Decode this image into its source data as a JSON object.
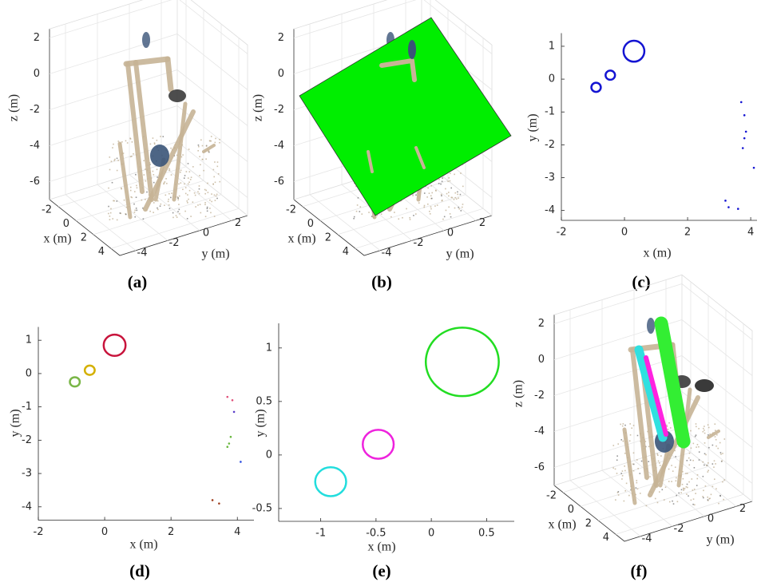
{
  "chart_data": [
    {
      "type": "scatter3d",
      "label": "(a)",
      "xlabel": "x (m)",
      "ylabel": "y (m)",
      "zlabel": "z (m)",
      "xlim": [
        -3,
        5
      ],
      "ylim": [
        -5,
        3
      ],
      "zlim": [
        -7,
        2.5
      ],
      "xticks": [
        -2,
        0,
        2,
        4
      ],
      "yticks": [
        -4,
        -2,
        0,
        2
      ],
      "zticks": [
        2,
        0,
        -2,
        -4,
        -6
      ],
      "grid": true
    },
    {
      "type": "scatter3d",
      "label": "(b)",
      "xlabel": "x (m)",
      "ylabel": "y (m)",
      "zlabel": "z (m)",
      "xlim": [
        -3,
        5
      ],
      "ylim": [
        -5,
        3
      ],
      "zlim": [
        -7,
        2.5
      ],
      "xticks": [
        -2,
        0,
        2,
        4
      ],
      "yticks": [
        -4,
        -2,
        0,
        2
      ],
      "zticks": [
        2,
        0,
        -2,
        -4,
        -6
      ],
      "grid": true
    },
    {
      "type": "scatter",
      "label": "(c)",
      "xlabel": "x (m)",
      "ylabel": "y (m)",
      "xlim": [
        -2,
        4.2
      ],
      "ylim": [
        -4.3,
        1.4
      ],
      "xticks": [
        -2,
        0,
        2,
        4
      ],
      "yticks": [
        1,
        0,
        -1,
        -2,
        -3,
        -4
      ],
      "rings": [
        {
          "color": "#1414d2",
          "x": 0.3,
          "y": 0.85,
          "rx": 0.33,
          "ry": 0.32
        },
        {
          "color": "#1414d2",
          "x": -0.45,
          "y": 0.12,
          "rx": 0.15,
          "ry": 0.14
        },
        {
          "color": "#1414d2",
          "x": -0.9,
          "y": -0.25,
          "rx": 0.15,
          "ry": 0.14
        }
      ],
      "series": [
        {
          "color": "#1414d2",
          "x": [
            3.7,
            3.8,
            3.8,
            3.75,
            3.85,
            4.1,
            3.2,
            3.3,
            3.6
          ],
          "y": [
            -0.7,
            -1.1,
            -1.8,
            -2.1,
            -1.6,
            -2.7,
            -3.7,
            -3.9,
            -3.95
          ]
        }
      ]
    },
    {
      "type": "scatter",
      "label": "(d)",
      "xlabel": "x (m)",
      "ylabel": "y (m)",
      "xlim": [
        -2,
        4.5
      ],
      "ylim": [
        -4.4,
        1.4
      ],
      "xticks": [
        -2,
        0,
        2,
        4
      ],
      "yticks": [
        1,
        0,
        -1,
        -2,
        -3,
        -4
      ],
      "rings": [
        {
          "color": "#c8143c",
          "x": 0.3,
          "y": 0.85,
          "rx": 0.33,
          "ry": 0.32
        },
        {
          "color": "#d4b000",
          "x": -0.45,
          "y": 0.1,
          "rx": 0.15,
          "ry": 0.14
        },
        {
          "color": "#7ab648",
          "x": -0.9,
          "y": -0.25,
          "rx": 0.15,
          "ry": 0.14
        }
      ],
      "series": [
        {
          "color": "#e0507a",
          "x": [
            3.7,
            3.85
          ],
          "y": [
            -0.7,
            -0.8
          ]
        },
        {
          "color": "#5a3cc8",
          "x": [
            3.9
          ],
          "y": [
            -1.15
          ]
        },
        {
          "color": "#6ab840",
          "x": [
            3.8,
            3.75,
            3.7
          ],
          "y": [
            -1.9,
            -2.1,
            -2.2
          ]
        },
        {
          "color": "#3050e0",
          "x": [
            4.1
          ],
          "y": [
            -2.65
          ]
        },
        {
          "color": "#a04020",
          "x": [
            3.25,
            3.45
          ],
          "y": [
            -3.8,
            -3.9
          ]
        }
      ]
    },
    {
      "type": "scatter",
      "label": "(e)",
      "xlabel": "x (m)",
      "ylabel": "y (m)",
      "xlim": [
        -1.38,
        0.75
      ],
      "ylim": [
        -0.62,
        1.23
      ],
      "xticks": [
        -1,
        -0.5,
        0,
        0.5
      ],
      "yticks": [
        1,
        0.5,
        0,
        -0.5
      ],
      "rings": [
        {
          "color": "#22dd22",
          "x": 0.28,
          "y": 0.87,
          "rx": 0.33,
          "ry": 0.32
        },
        {
          "color": "#ee22dd",
          "x": -0.48,
          "y": 0.1,
          "rx": 0.14,
          "ry": 0.135
        },
        {
          "color": "#22dddd",
          "x": -0.91,
          "y": -0.25,
          "rx": 0.14,
          "ry": 0.135
        }
      ],
      "series": []
    },
    {
      "type": "scatter3d",
      "label": "(f)",
      "xlabel": "x (m)",
      "ylabel": "y (m)",
      "zlabel": "z (m)",
      "xlim": [
        -3,
        5
      ],
      "ylim": [
        -5,
        3
      ],
      "zlim": [
        -7,
        2.5
      ],
      "xticks": [
        -2,
        0,
        2,
        4
      ],
      "yticks": [
        -4,
        -2,
        0,
        2
      ],
      "zticks": [
        2,
        0,
        -2,
        -4,
        -6
      ],
      "grid": true
    }
  ]
}
